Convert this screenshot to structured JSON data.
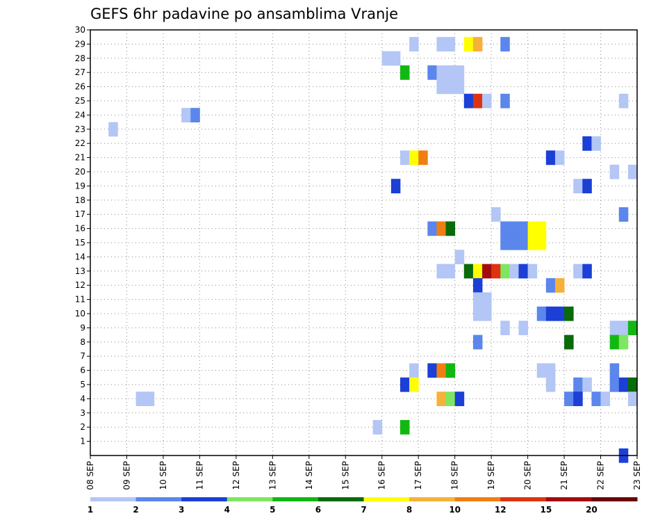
{
  "chart_data": {
    "type": "heatmap",
    "title": "GEFS 6hr padavine po ansamblima Vranje",
    "xlabel": "",
    "ylabel": "",
    "x_tick_labels": [
      "08 SEP",
      "09 SEP",
      "10 SEP",
      "11 SEP",
      "12 SEP",
      "13 SEP",
      "14 SEP",
      "15 SEP",
      "16 SEP",
      "17 SEP",
      "18 SEP",
      "19 SEP",
      "20 SEP",
      "21 SEP",
      "22 SEP",
      "23 SEP"
    ],
    "y_tick_labels": [
      "1",
      "2",
      "3",
      "4",
      "5",
      "6",
      "7",
      "8",
      "9",
      "10",
      "11",
      "12",
      "13",
      "14",
      "15",
      "16",
      "17",
      "18",
      "19",
      "20",
      "21",
      "22",
      "23",
      "24",
      "25",
      "26",
      "27",
      "28",
      "29",
      "30"
    ],
    "x_range_days": [
      0,
      15
    ],
    "y_range": [
      0,
      30
    ],
    "grid": true,
    "legend_placement": "bottom",
    "legend": {
      "labels": [
        "1",
        "2",
        "3",
        "4",
        "5",
        "6",
        "7",
        "8",
        "10",
        "12",
        "15",
        "20"
      ],
      "colors": [
        "#b3c6f5",
        "#5b86ec",
        "#1c3fd6",
        "#7ee660",
        "#12b812",
        "#0a6b0a",
        "#ffff00",
        "#f5b13a",
        "#f07e12",
        "#dd3310",
        "#a30c0c",
        "#6b0505"
      ]
    },
    "cell_width_days": 0.25,
    "cells": [
      {
        "m": 29,
        "d": 8.75,
        "c": 1
      },
      {
        "m": 29,
        "d": 9.5,
        "c": 1
      },
      {
        "m": 29,
        "d": 9.75,
        "c": 1
      },
      {
        "m": 29,
        "d": 10.25,
        "c": 7
      },
      {
        "m": 29,
        "d": 10.5,
        "c": 8
      },
      {
        "m": 29,
        "d": 11.25,
        "c": 2
      },
      {
        "m": 28,
        "d": 8.0,
        "c": 1
      },
      {
        "m": 28,
        "d": 8.25,
        "c": 1
      },
      {
        "m": 27,
        "d": 8.5,
        "c": 5
      },
      {
        "m": 27,
        "d": 9.25,
        "c": 2
      },
      {
        "m": 27,
        "d": 9.5,
        "c": 1
      },
      {
        "m": 27,
        "d": 9.75,
        "c": 1
      },
      {
        "m": 27,
        "d": 10.0,
        "c": 1
      },
      {
        "m": 26,
        "d": 9.5,
        "c": 1
      },
      {
        "m": 26,
        "d": 9.75,
        "c": 1
      },
      {
        "m": 26,
        "d": 10.0,
        "c": 1
      },
      {
        "m": 25,
        "d": 10.25,
        "c": 3
      },
      {
        "m": 25,
        "d": 10.5,
        "c": 10
      },
      {
        "m": 25,
        "d": 10.75,
        "c": 1
      },
      {
        "m": 25,
        "d": 11.25,
        "c": 2
      },
      {
        "m": 25,
        "d": 14.5,
        "c": 1
      },
      {
        "m": 24,
        "d": 2.5,
        "c": 1
      },
      {
        "m": 24,
        "d": 2.75,
        "c": 2
      },
      {
        "m": 23,
        "d": 0.5,
        "c": 1
      },
      {
        "m": 22,
        "d": 13.5,
        "c": 3
      },
      {
        "m": 22,
        "d": 13.75,
        "c": 1
      },
      {
        "m": 21,
        "d": 8.5,
        "c": 1
      },
      {
        "m": 21,
        "d": 8.75,
        "c": 7
      },
      {
        "m": 21,
        "d": 9.0,
        "c": 9
      },
      {
        "m": 21,
        "d": 12.5,
        "c": 3
      },
      {
        "m": 21,
        "d": 12.75,
        "c": 1
      },
      {
        "m": 20,
        "d": 14.25,
        "c": 1
      },
      {
        "m": 20,
        "d": 14.75,
        "c": 1
      },
      {
        "m": 19,
        "d": 8.25,
        "c": 3
      },
      {
        "m": 19,
        "d": 13.25,
        "c": 1
      },
      {
        "m": 19,
        "d": 13.5,
        "c": 3
      },
      {
        "m": 17,
        "d": 11.0,
        "c": 1
      },
      {
        "m": 17,
        "d": 14.5,
        "c": 2
      },
      {
        "m": 16,
        "d": 9.25,
        "c": 2
      },
      {
        "m": 16,
        "d": 9.5,
        "c": 9
      },
      {
        "m": 16,
        "d": 9.75,
        "c": 6
      },
      {
        "m": 16,
        "d": 11.25,
        "c": 2
      },
      {
        "m": 16,
        "d": 11.5,
        "c": 2
      },
      {
        "m": 16,
        "d": 11.75,
        "c": 2
      },
      {
        "m": 16,
        "d": 12.0,
        "c": 7
      },
      {
        "m": 16,
        "d": 12.25,
        "c": 7
      },
      {
        "m": 15,
        "d": 11.25,
        "c": 2
      },
      {
        "m": 15,
        "d": 11.5,
        "c": 2
      },
      {
        "m": 15,
        "d": 11.75,
        "c": 2
      },
      {
        "m": 15,
        "d": 12.0,
        "c": 7
      },
      {
        "m": 15,
        "d": 12.25,
        "c": 7
      },
      {
        "m": 14,
        "d": 10.0,
        "c": 1
      },
      {
        "m": 13,
        "d": 9.5,
        "c": 1
      },
      {
        "m": 13,
        "d": 9.75,
        "c": 1
      },
      {
        "m": 13,
        "d": 10.25,
        "c": 6
      },
      {
        "m": 13,
        "d": 10.5,
        "c": 7
      },
      {
        "m": 13,
        "d": 10.75,
        "c": 11
      },
      {
        "m": 13,
        "d": 11.0,
        "c": 10
      },
      {
        "m": 13,
        "d": 11.25,
        "c": 4
      },
      {
        "m": 13,
        "d": 11.5,
        "c": 1
      },
      {
        "m": 13,
        "d": 11.75,
        "c": 3
      },
      {
        "m": 13,
        "d": 12.0,
        "c": 1
      },
      {
        "m": 13,
        "d": 13.25,
        "c": 1
      },
      {
        "m": 13,
        "d": 13.5,
        "c": 3
      },
      {
        "m": 12,
        "d": 10.5,
        "c": 3
      },
      {
        "m": 12,
        "d": 12.5,
        "c": 2
      },
      {
        "m": 12,
        "d": 12.75,
        "c": 8
      },
      {
        "m": 11,
        "d": 10.5,
        "c": 1
      },
      {
        "m": 11,
        "d": 10.75,
        "c": 1
      },
      {
        "m": 10,
        "d": 10.5,
        "c": 1
      },
      {
        "m": 10,
        "d": 10.75,
        "c": 1
      },
      {
        "m": 10,
        "d": 12.25,
        "c": 2
      },
      {
        "m": 10,
        "d": 12.5,
        "c": 3
      },
      {
        "m": 10,
        "d": 12.75,
        "c": 3
      },
      {
        "m": 10,
        "d": 13.0,
        "c": 6
      },
      {
        "m": 9,
        "d": 11.25,
        "c": 1
      },
      {
        "m": 9,
        "d": 11.75,
        "c": 1
      },
      {
        "m": 9,
        "d": 14.25,
        "c": 1
      },
      {
        "m": 9,
        "d": 14.5,
        "c": 1
      },
      {
        "m": 9,
        "d": 14.75,
        "c": 5
      },
      {
        "m": 8,
        "d": 10.5,
        "c": 2
      },
      {
        "m": 8,
        "d": 13.0,
        "c": 6
      },
      {
        "m": 8,
        "d": 14.25,
        "c": 5
      },
      {
        "m": 8,
        "d": 14.5,
        "c": 4
      },
      {
        "m": 6,
        "d": 8.75,
        "c": 1
      },
      {
        "m": 6,
        "d": 9.25,
        "c": 3
      },
      {
        "m": 6,
        "d": 9.5,
        "c": 9
      },
      {
        "m": 6,
        "d": 9.75,
        "c": 5
      },
      {
        "m": 6,
        "d": 12.25,
        "c": 1
      },
      {
        "m": 6,
        "d": 12.5,
        "c": 1
      },
      {
        "m": 6,
        "d": 14.25,
        "c": 2
      },
      {
        "m": 5,
        "d": 8.5,
        "c": 3
      },
      {
        "m": 5,
        "d": 8.75,
        "c": 7
      },
      {
        "m": 5,
        "d": 12.5,
        "c": 1
      },
      {
        "m": 5,
        "d": 13.25,
        "c": 2
      },
      {
        "m": 5,
        "d": 13.5,
        "c": 1
      },
      {
        "m": 5,
        "d": 14.25,
        "c": 2
      },
      {
        "m": 5,
        "d": 14.5,
        "c": 3
      },
      {
        "m": 5,
        "d": 14.75,
        "c": 6
      },
      {
        "m": 4,
        "d": 1.25,
        "c": 1
      },
      {
        "m": 4,
        "d": 1.5,
        "c": 1
      },
      {
        "m": 4,
        "d": 9.5,
        "c": 8
      },
      {
        "m": 4,
        "d": 9.75,
        "c": 4
      },
      {
        "m": 4,
        "d": 10.0,
        "c": 3
      },
      {
        "m": 4,
        "d": 13.0,
        "c": 2
      },
      {
        "m": 4,
        "d": 13.25,
        "c": 3
      },
      {
        "m": 4,
        "d": 13.75,
        "c": 2
      },
      {
        "m": 4,
        "d": 14.0,
        "c": 1
      },
      {
        "m": 4,
        "d": 14.75,
        "c": 1
      },
      {
        "m": 2,
        "d": 7.75,
        "c": 1
      },
      {
        "m": 2,
        "d": 8.5,
        "c": 5
      },
      {
        "m": 0,
        "d": 14.5,
        "c": 3
      }
    ]
  }
}
